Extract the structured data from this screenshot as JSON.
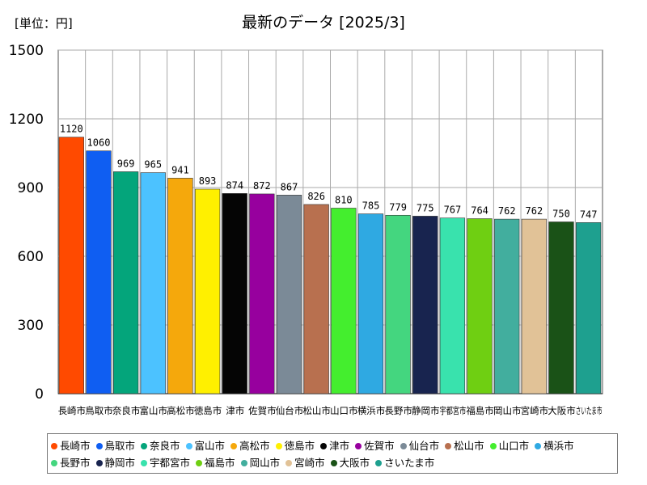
{
  "chart_data": {
    "type": "bar",
    "title": "最新のデータ [2025/3]",
    "unit_label": "[単位：円]",
    "xlabel": "",
    "ylabel": "",
    "ylim": [
      0,
      1500
    ],
    "yticks": [
      0,
      300,
      600,
      900,
      1200,
      1500
    ],
    "grid": true,
    "legend_position": "bottom",
    "categories": [
      "長崎市",
      "鳥取市",
      "奈良市",
      "富山市",
      "高松市",
      "徳島市",
      "津市",
      "佐賀市",
      "仙台市",
      "松山市",
      "山口市",
      "横浜市",
      "長野市",
      "静岡市",
      "宇都宮市",
      "福島市",
      "岡山市",
      "宮崎市",
      "大阪市",
      "さいたま市"
    ],
    "values": [
      1120,
      1060,
      969,
      965,
      941,
      893,
      874,
      872,
      867,
      826,
      810,
      785,
      779,
      775,
      767,
      764,
      762,
      762,
      750,
      747
    ],
    "data_labels": [
      "1120",
      "1060",
      "969",
      "965",
      "941",
      "893",
      "874",
      "872",
      "867",
      "826",
      "810",
      "785",
      "779",
      "775",
      "767",
      "764",
      "762",
      "762",
      "750",
      "747"
    ],
    "colors": [
      "#ff4a00",
      "#0f5ef2",
      "#04a57b",
      "#4cc2ff",
      "#f5a80c",
      "#fff000",
      "#050505",
      "#97009e",
      "#7b8a97",
      "#b8704f",
      "#44ee2e",
      "#2fa9e2",
      "#44d67f",
      "#18244f",
      "#39e2ad",
      "#6fcf12",
      "#42ae9e",
      "#e1c297",
      "#1a5217",
      "#1ea08f"
    ]
  }
}
